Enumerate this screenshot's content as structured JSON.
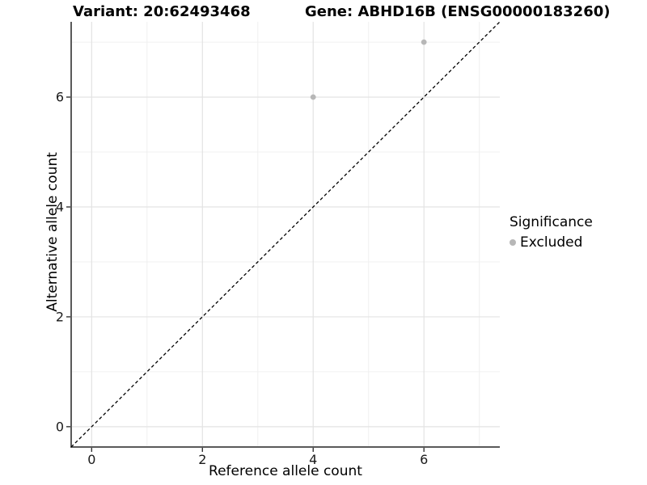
{
  "chart_data": {
    "type": "scatter",
    "titles": {
      "variant": "Variant: 20:62493468",
      "gene": "Gene: ABHD16B (ENSG00000183260)"
    },
    "xlabel": "Reference allele count",
    "ylabel": "Alternative allele count",
    "xlim": [
      -0.37,
      7.37
    ],
    "ylim": [
      -0.37,
      7.37
    ],
    "x_major_ticks": [
      0,
      2,
      4,
      6
    ],
    "y_major_ticks": [
      0,
      2,
      4,
      6
    ],
    "x_minor_gridlines": [
      1,
      3,
      5,
      7
    ],
    "y_minor_gridlines": [
      1,
      3,
      5,
      7
    ],
    "grid": "major and minor gridlines on white background",
    "points": [
      {
        "x": 4,
        "y": 6,
        "significance": "Excluded"
      },
      {
        "x": 6,
        "y": 7,
        "significance": "Excluded"
      }
    ],
    "reference_line": {
      "type": "identity (y = x)",
      "style": "dashed",
      "color": "#000000"
    },
    "legend": {
      "title": "Significance",
      "position": "right",
      "items": [
        {
          "label": "Excluded",
          "color": "#b7b7b7",
          "marker": "circle"
        }
      ]
    }
  },
  "colors": {
    "background": "#ffffff",
    "axis_line": "#5a5a5a",
    "tick_mark": "#333333",
    "tick_text": "#1a1a1a",
    "major_grid": "#e3e3e3",
    "minor_grid": "#f0f0f0",
    "point_excluded": "#b7b7b7",
    "diagonal_line": "#000000"
  }
}
